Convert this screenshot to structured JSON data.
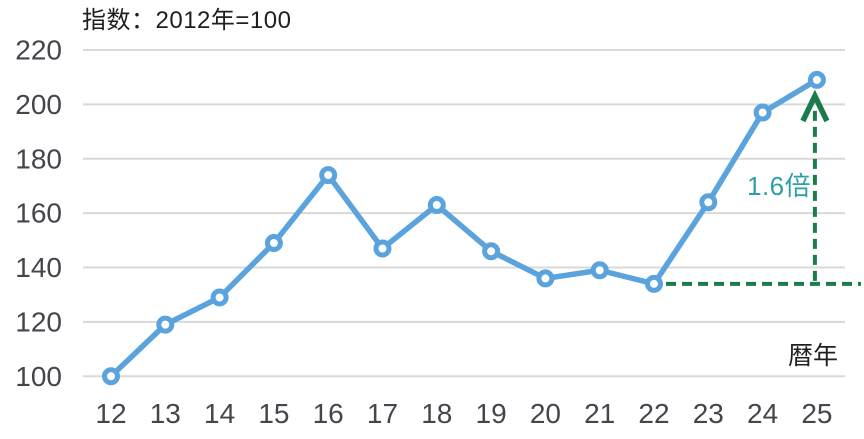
{
  "chart_data": {
    "type": "line",
    "title": "指数：2012年=100",
    "x_axis_note": "暦年",
    "categories": [
      "12",
      "13",
      "14",
      "15",
      "16",
      "17",
      "18",
      "19",
      "20",
      "21",
      "22",
      "23",
      "24",
      "25"
    ],
    "series": [
      {
        "name": "指数",
        "values": [
          100,
          119,
          129,
          149,
          174,
          147,
          163,
          146,
          136,
          139,
          134,
          164,
          197,
          209
        ]
      }
    ],
    "yticks": [
      100,
      120,
      140,
      160,
      180,
      200,
      220
    ],
    "ylim": [
      100,
      220
    ],
    "grid": "horizontal-only",
    "legend": "none",
    "annotation": {
      "label": "1.6倍",
      "from_category": "22",
      "from_value": 134,
      "to_category": "25",
      "to_value": 209,
      "style": "dashed-right-angle-arrow"
    },
    "colors": {
      "line": "#5BA3DC",
      "marker_fill": "#FFFFFF",
      "grid": "#D9D9D9",
      "axis_text": "#45454D",
      "title_text": "#1F1F1F",
      "annotation_line": "#1B7B4B",
      "annotation_text": "#2BA0A6"
    }
  }
}
